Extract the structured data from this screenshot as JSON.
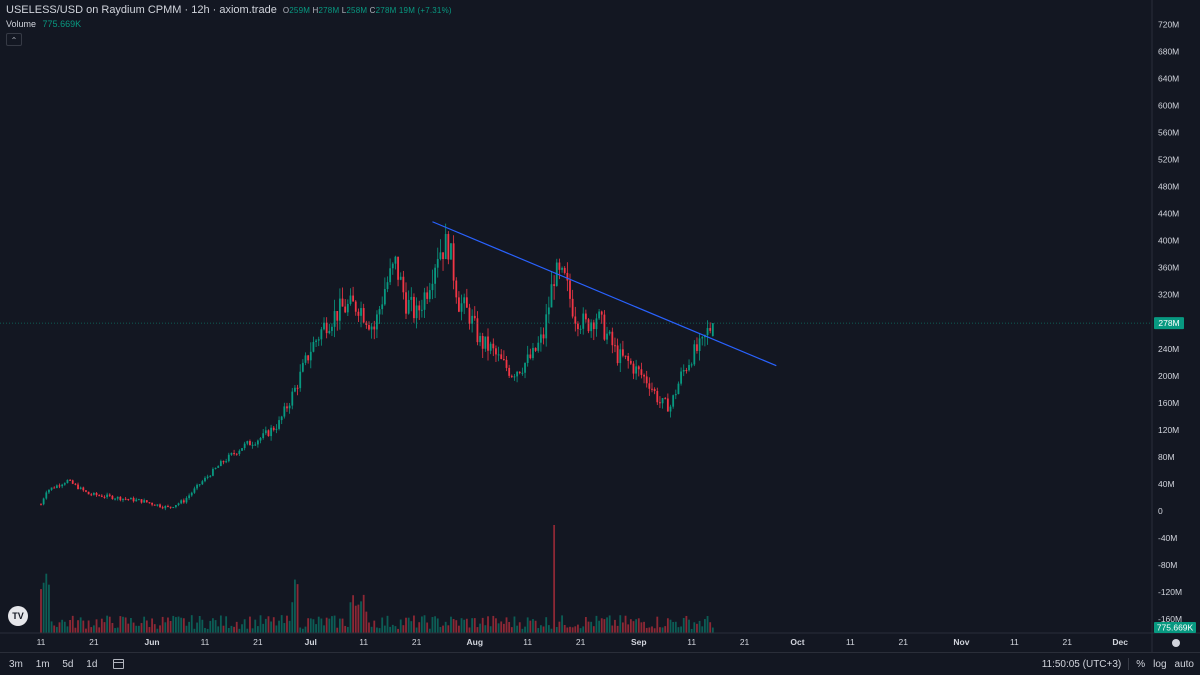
{
  "header": {
    "title": "USELESS/USD on Raydium CPMM · 12h · axiom.trade",
    "ohlc": {
      "o_label": "O",
      "o": "259M",
      "h_label": "H",
      "h": "278M",
      "l_label": "L",
      "l": "258M",
      "c_label": "C",
      "c": "278M",
      "change": "19M (+7.31%)"
    },
    "volume_label": "Volume",
    "volume_value": "775.669K",
    "collapse_symbol": "⌃"
  },
  "logo_text": "TV",
  "price_axis": {
    "ticks": [
      "720M",
      "680M",
      "640M",
      "600M",
      "560M",
      "520M",
      "480M",
      "440M",
      "400M",
      "360M",
      "320M",
      "280M",
      "240M",
      "200M",
      "160M",
      "120M",
      "80M",
      "40M",
      "0",
      "-40M",
      "-80M",
      "-120M",
      "-160M"
    ],
    "last_price": "278M",
    "volume_tag": "775.669K"
  },
  "time_axis": {
    "ticks": [
      "11",
      "21",
      "Jun",
      "11",
      "21",
      "Jul",
      "11",
      "21",
      "Aug",
      "11",
      "21",
      "Sep",
      "11",
      "21",
      "Oct",
      "11",
      "21",
      "Nov",
      "11",
      "21",
      "Dec"
    ],
    "bold_ticks": [
      "Jun",
      "Jul",
      "Aug",
      "Sep",
      "Oct",
      "Nov",
      "Dec"
    ]
  },
  "bottom_bar": {
    "timeframes": [
      "3m",
      "1m",
      "5d",
      "1d"
    ],
    "clock": "11:50:05 (UTC+3)",
    "percent": "%",
    "log": "log",
    "auto": "auto"
  },
  "chart_data": {
    "type": "candlestick",
    "title": "USELESS/USD on Raydium CPMM · 12h · axiom.trade",
    "interval": "12h",
    "y_unit": "M (USD)",
    "ylim": [
      -160,
      720
    ],
    "x_range": [
      "May 11",
      "Dec"
    ],
    "grid": false,
    "up_color": "#089981",
    "down_color": "#f23645",
    "trendline_color": "#2962ff",
    "last_price_line": 278,
    "trendline": {
      "start": [
        "Jul 24",
        428
      ],
      "end": [
        "Sep 27",
        215
      ]
    },
    "close_keypoints": [
      [
        "May 11",
        10
      ],
      [
        "May 12",
        30
      ],
      [
        "May 16",
        45
      ],
      [
        "May 20",
        25
      ],
      [
        "May 25",
        20
      ],
      [
        "May 30",
        15
      ],
      [
        "Jun 4",
        5
      ],
      [
        "Jun 7",
        15
      ],
      [
        "Jun 10",
        40
      ],
      [
        "Jun 14",
        70
      ],
      [
        "Jun 18",
        95
      ],
      [
        "Jun 22",
        110
      ],
      [
        "Jun 25",
        130
      ],
      [
        "Jun 28",
        180
      ],
      [
        "Jul 1",
        240
      ],
      [
        "Jul 4",
        280
      ],
      [
        "Jul 7",
        300
      ],
      [
        "Jul 10",
        305
      ],
      [
        "Jul 13",
        270
      ],
      [
        "Jul 15",
        330
      ],
      [
        "Jul 17",
        365
      ],
      [
        "Jul 19",
        310
      ],
      [
        "Jul 21",
        290
      ],
      [
        "Jul 23",
        330
      ],
      [
        "Jul 25",
        385
      ],
      [
        "Jul 27",
        395
      ],
      [
        "Jul 29",
        310
      ],
      [
        "Jul 31",
        290
      ],
      [
        "Aug 2",
        250
      ],
      [
        "Aug 4",
        240
      ],
      [
        "Aug 6",
        220
      ],
      [
        "Aug 8",
        205
      ],
      [
        "Aug 10",
        215
      ],
      [
        "Aug 12",
        230
      ],
      [
        "Aug 14",
        260
      ],
      [
        "Aug 16",
        350
      ],
      [
        "Aug 18",
        340
      ],
      [
        "Aug 20",
        290
      ],
      [
        "Aug 22",
        275
      ],
      [
        "Aug 24",
        290
      ],
      [
        "Aug 26",
        260
      ],
      [
        "Aug 28",
        230
      ],
      [
        "Aug 30",
        220
      ],
      [
        "Sep 1",
        205
      ],
      [
        "Sep 3",
        190
      ],
      [
        "Sep 5",
        160
      ],
      [
        "Sep 7",
        155
      ],
      [
        "Sep 9",
        200
      ],
      [
        "Sep 11",
        230
      ],
      [
        "Sep 13",
        245
      ],
      [
        "Sep 14",
        265
      ],
      [
        "Sep 15",
        278
      ]
    ],
    "volume_unit": "K",
    "last_volume": 775.669
  }
}
